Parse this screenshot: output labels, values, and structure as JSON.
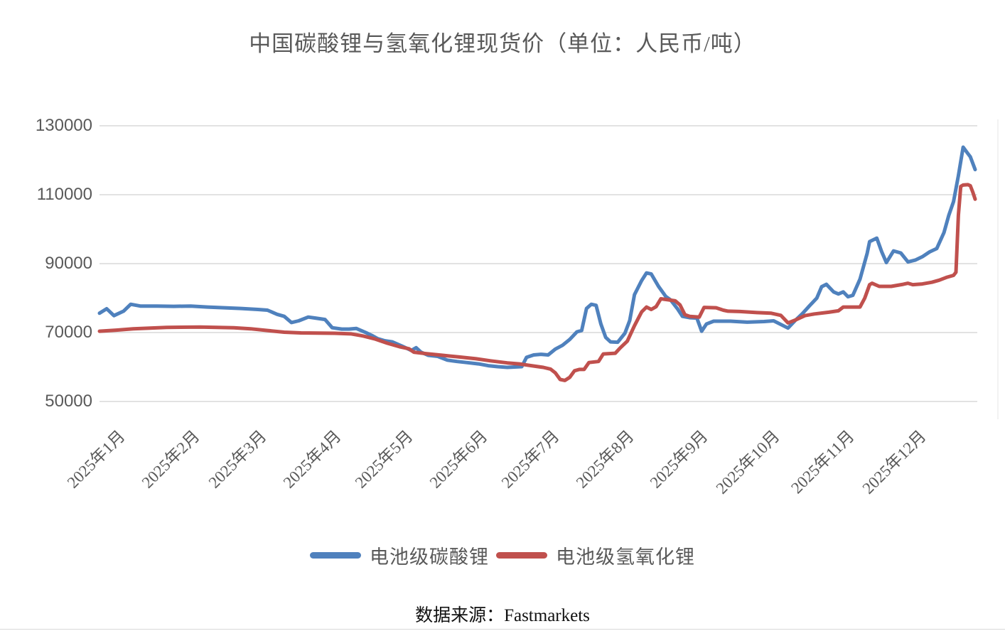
{
  "title": "中国碳酸锂与氢氧化锂现货价（单位：人民币/吨）",
  "source_note": "数据来源：Fastmarkets",
  "legend": [
    {
      "label": "电池级碳酸锂",
      "color": "#4F81BD"
    },
    {
      "label": "电池级氢氧化锂",
      "color": "#C0504D"
    }
  ],
  "colors": {
    "carbonate_blue": "#4F81BD",
    "hydroxide_red": "#C0504D",
    "gridline": "#d9d9d9",
    "axis_text": "#595959"
  },
  "chart_data": {
    "type": "line",
    "title": "中国碳酸锂与氢氧化锂现货价（单位：人民币/吨）",
    "xlabel": "",
    "ylabel": "人民币/吨",
    "grid": true,
    "legend_position": "bottom",
    "source": "数据来源：Fastmarkets",
    "y_axis": {
      "min": 50000,
      "max": 130000,
      "ticks": [
        130000,
        110000,
        90000,
        70000,
        50000
      ]
    },
    "x_axis": {
      "span_days": 365,
      "categories": [
        "2025年1月",
        "2025年2月",
        "2025年3月",
        "2025年4月",
        "2025年5月",
        "2025年6月",
        "2025年7月",
        "2025年8月",
        "2025年9月",
        "2025年10月",
        "2025年11月",
        "2025年12月"
      ],
      "category_start_days": [
        0,
        31,
        59,
        90,
        120,
        151,
        181,
        212,
        243,
        273,
        304,
        334
      ]
    },
    "series": [
      {
        "name": "电池级碳酸锂",
        "color": "#4F81BD",
        "points": [
          [
            0,
            75600
          ],
          [
            3,
            76900
          ],
          [
            6,
            74900
          ],
          [
            10,
            76200
          ],
          [
            13,
            78200
          ],
          [
            17,
            77700
          ],
          [
            24,
            77700
          ],
          [
            31,
            77600
          ],
          [
            38,
            77700
          ],
          [
            45,
            77400
          ],
          [
            52,
            77200
          ],
          [
            59,
            77000
          ],
          [
            66,
            76700
          ],
          [
            70,
            76500
          ],
          [
            74,
            75300
          ],
          [
            77,
            74700
          ],
          [
            80,
            72900
          ],
          [
            83,
            73400
          ],
          [
            87,
            74500
          ],
          [
            90,
            74200
          ],
          [
            94,
            73800
          ],
          [
            97,
            71400
          ],
          [
            101,
            71000
          ],
          [
            104,
            71000
          ],
          [
            107,
            71200
          ],
          [
            111,
            70000
          ],
          [
            114,
            69000
          ],
          [
            116,
            68200
          ],
          [
            119,
            67600
          ],
          [
            122,
            67300
          ],
          [
            126,
            66100
          ],
          [
            130,
            64800
          ],
          [
            132,
            65600
          ],
          [
            134,
            64300
          ],
          [
            137,
            63400
          ],
          [
            141,
            63100
          ],
          [
            145,
            62000
          ],
          [
            149,
            61600
          ],
          [
            153,
            61300
          ],
          [
            158,
            60900
          ],
          [
            162,
            60400
          ],
          [
            166,
            60100
          ],
          [
            170,
            59900
          ],
          [
            173,
            60000
          ],
          [
            176,
            60100
          ],
          [
            178,
            62800
          ],
          [
            181,
            63500
          ],
          [
            184,
            63700
          ],
          [
            187,
            63500
          ],
          [
            190,
            65200
          ],
          [
            193,
            66300
          ],
          [
            196,
            68000
          ],
          [
            199,
            70200
          ],
          [
            201,
            70600
          ],
          [
            203,
            77000
          ],
          [
            205,
            78200
          ],
          [
            207,
            77900
          ],
          [
            209,
            72500
          ],
          [
            211,
            68600
          ],
          [
            213,
            67300
          ],
          [
            216,
            67200
          ],
          [
            219,
            69800
          ],
          [
            221,
            73500
          ],
          [
            223,
            81000
          ],
          [
            226,
            85100
          ],
          [
            228,
            87300
          ],
          [
            230,
            87000
          ],
          [
            233,
            83400
          ],
          [
            236,
            80500
          ],
          [
            238,
            79500
          ],
          [
            241,
            76800
          ],
          [
            243,
            74700
          ],
          [
            246,
            74300
          ],
          [
            249,
            74200
          ],
          [
            251,
            70400
          ],
          [
            253,
            72500
          ],
          [
            256,
            73300
          ],
          [
            263,
            73300
          ],
          [
            270,
            73000
          ],
          [
            277,
            73200
          ],
          [
            281,
            73400
          ],
          [
            285,
            72000
          ],
          [
            287,
            71300
          ],
          [
            290,
            73500
          ],
          [
            293,
            75500
          ],
          [
            296,
            77800
          ],
          [
            299,
            80000
          ],
          [
            301,
            83300
          ],
          [
            303,
            84000
          ],
          [
            306,
            81800
          ],
          [
            308,
            81200
          ],
          [
            310,
            81800
          ],
          [
            312,
            80400
          ],
          [
            314,
            80800
          ],
          [
            317,
            85500
          ],
          [
            320,
            93000
          ],
          [
            321,
            96400
          ],
          [
            324,
            97400
          ],
          [
            326,
            93500
          ],
          [
            328,
            90300
          ],
          [
            331,
            93700
          ],
          [
            334,
            93100
          ],
          [
            337,
            90500
          ],
          [
            340,
            91000
          ],
          [
            343,
            92000
          ],
          [
            346,
            93400
          ],
          [
            349,
            94400
          ],
          [
            352,
            99000
          ],
          [
            354,
            104000
          ],
          [
            356,
            108000
          ],
          [
            358,
            115500
          ],
          [
            360,
            123800
          ],
          [
            362,
            121900
          ],
          [
            363,
            121000
          ],
          [
            365,
            117300
          ]
        ]
      },
      {
        "name": "电池级氢氧化锂",
        "color": "#C0504D",
        "points": [
          [
            0,
            70400
          ],
          [
            7,
            70700
          ],
          [
            14,
            71100
          ],
          [
            21,
            71300
          ],
          [
            28,
            71500
          ],
          [
            42,
            71600
          ],
          [
            56,
            71400
          ],
          [
            63,
            71100
          ],
          [
            70,
            70600
          ],
          [
            77,
            70100
          ],
          [
            84,
            69900
          ],
          [
            98,
            69800
          ],
          [
            105,
            69600
          ],
          [
            110,
            69000
          ],
          [
            115,
            68100
          ],
          [
            120,
            66900
          ],
          [
            125,
            65900
          ],
          [
            129,
            65300
          ],
          [
            131,
            64300
          ],
          [
            136,
            63900
          ],
          [
            143,
            63400
          ],
          [
            150,
            62900
          ],
          [
            157,
            62400
          ],
          [
            163,
            61800
          ],
          [
            170,
            61200
          ],
          [
            175,
            60900
          ],
          [
            180,
            60400
          ],
          [
            185,
            59900
          ],
          [
            188,
            59400
          ],
          [
            190,
            58300
          ],
          [
            192,
            56400
          ],
          [
            194,
            56100
          ],
          [
            196,
            57000
          ],
          [
            198,
            58900
          ],
          [
            200,
            59300
          ],
          [
            202,
            59300
          ],
          [
            204,
            61300
          ],
          [
            208,
            61600
          ],
          [
            210,
            63800
          ],
          [
            215,
            64000
          ],
          [
            217,
            65500
          ],
          [
            220,
            67500
          ],
          [
            223,
            72000
          ],
          [
            226,
            76000
          ],
          [
            228,
            77400
          ],
          [
            230,
            76700
          ],
          [
            232,
            77500
          ],
          [
            234,
            79800
          ],
          [
            237,
            79500
          ],
          [
            240,
            79200
          ],
          [
            242,
            78000
          ],
          [
            244,
            75200
          ],
          [
            246,
            74700
          ],
          [
            250,
            74500
          ],
          [
            252,
            77300
          ],
          [
            257,
            77200
          ],
          [
            260,
            76500
          ],
          [
            262,
            76200
          ],
          [
            267,
            76100
          ],
          [
            274,
            75800
          ],
          [
            280,
            75600
          ],
          [
            284,
            75000
          ],
          [
            287,
            72800
          ],
          [
            290,
            73600
          ],
          [
            294,
            74900
          ],
          [
            298,
            75400
          ],
          [
            304,
            75900
          ],
          [
            308,
            76300
          ],
          [
            310,
            77400
          ],
          [
            317,
            77400
          ],
          [
            319,
            80000
          ],
          [
            321,
            83900
          ],
          [
            322,
            84300
          ],
          [
            325,
            83400
          ],
          [
            330,
            83400
          ],
          [
            335,
            84000
          ],
          [
            337,
            84300
          ],
          [
            339,
            83900
          ],
          [
            343,
            84100
          ],
          [
            347,
            84600
          ],
          [
            350,
            85200
          ],
          [
            353,
            86000
          ],
          [
            356,
            86600
          ],
          [
            357,
            87500
          ],
          [
            358,
            104000
          ],
          [
            359,
            112400
          ],
          [
            360,
            112800
          ],
          [
            362,
            112900
          ],
          [
            363,
            112600
          ],
          [
            364,
            110800
          ],
          [
            365,
            108700
          ]
        ]
      }
    ]
  }
}
